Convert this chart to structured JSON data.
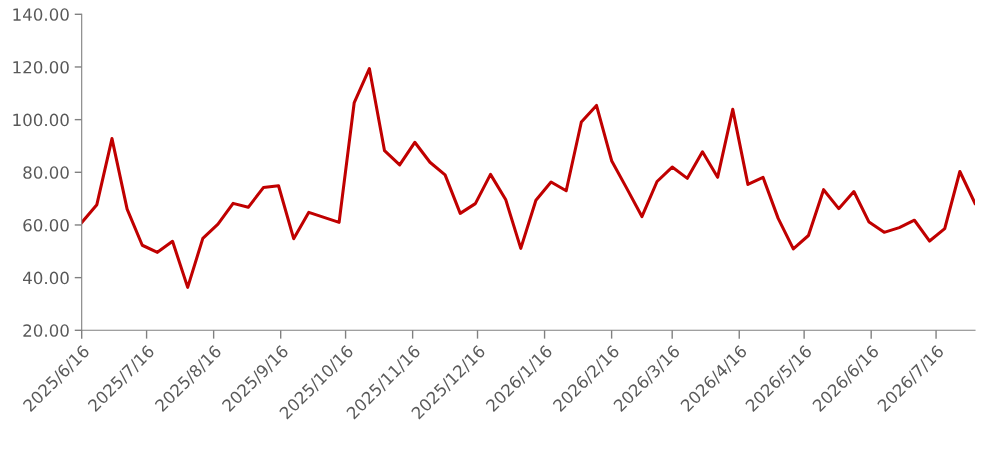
{
  "chart_data": {
    "type": "line",
    "x": [
      "2025-06-16",
      "2025-06-23",
      "2025-06-30",
      "2025-07-07",
      "2025-07-14",
      "2025-07-21",
      "2025-07-28",
      "2025-08-04",
      "2025-08-11",
      "2025-08-18",
      "2025-08-25",
      "2025-09-01",
      "2025-09-08",
      "2025-09-15",
      "2025-09-22",
      "2025-09-29",
      "2025-10-06",
      "2025-10-13",
      "2025-10-20",
      "2025-10-27",
      "2025-11-03",
      "2025-11-10",
      "2025-11-17",
      "2025-11-24",
      "2025-12-01",
      "2025-12-08",
      "2025-12-15",
      "2025-12-22",
      "2025-12-29",
      "2026-01-05",
      "2026-01-12",
      "2026-01-19",
      "2026-01-26",
      "2026-02-02",
      "2026-02-09",
      "2026-02-16",
      "2026-02-23",
      "2026-03-02",
      "2026-03-09",
      "2026-03-16",
      "2026-03-23",
      "2026-03-30",
      "2026-04-06",
      "2026-04-13",
      "2026-04-20",
      "2026-04-27",
      "2026-05-04",
      "2026-05-11",
      "2026-05-18",
      "2026-05-25",
      "2026-06-01",
      "2026-06-08",
      "2026-06-15",
      "2026-06-22",
      "2026-06-29",
      "2026-07-06",
      "2026-07-13",
      "2026-07-20",
      "2026-07-27",
      "2026-08-03"
    ],
    "series": [
      {
        "color": "#c00000",
        "values": [
          60.9,
          67.7,
          92.8,
          66,
          52.3,
          49.6,
          53.8,
          36.3,
          54.9,
          60.3,
          68.2,
          66.7,
          74.2,
          74.9,
          54.8,
          64.8,
          62.9,
          61,
          106.5,
          119.4,
          88.2,
          82.8,
          91.4,
          83.8,
          79,
          64.4,
          68.1,
          79.2,
          69.7,
          51.1,
          69.4,
          76.3,
          73,
          99.1,
          105.4,
          84.4,
          73.9,
          63.2,
          76.5,
          82,
          77.7,
          87.8,
          78.1,
          103.9,
          75.4,
          78.1,
          62.5,
          50.9,
          56,
          73.4,
          66.2,
          72.7,
          61.1,
          57.2,
          59,
          61.8,
          53.9,
          58.6,
          80.3,
          68.2
        ]
      }
    ],
    "xlim": [
      "2025-06-16",
      "2026-08-03"
    ],
    "xticks": [
      {
        "value": "2025-06-16",
        "label": "2025/6/16"
      },
      {
        "value": "2025-07-16",
        "label": "2025/7/16"
      },
      {
        "value": "2025-08-16",
        "label": "2025/8/16"
      },
      {
        "value": "2025-09-16",
        "label": "2025/9/16"
      },
      {
        "value": "2025-10-16",
        "label": "2025/10/16"
      },
      {
        "value": "2025-11-16",
        "label": "2025/11/16"
      },
      {
        "value": "2025-12-16",
        "label": "2025/12/16"
      },
      {
        "value": "2026-01-16",
        "label": "2026/1/16"
      },
      {
        "value": "2026-02-16",
        "label": "2026/2/16"
      },
      {
        "value": "2026-03-16",
        "label": "2026/3/16"
      },
      {
        "value": "2026-04-16",
        "label": "2026/4/16"
      },
      {
        "value": "2026-05-16",
        "label": "2026/5/16"
      },
      {
        "value": "2026-06-16",
        "label": "2026/6/16"
      },
      {
        "value": "2026-07-16",
        "label": "2026/7/16"
      }
    ],
    "ylim": [
      20,
      140
    ],
    "yticks": [
      {
        "value": 20,
        "label": "20.00"
      },
      {
        "value": 40,
        "label": "40.00"
      },
      {
        "value": 60,
        "label": "60.00"
      },
      {
        "value": 80,
        "label": "80.00"
      },
      {
        "value": 100,
        "label": "100.00"
      },
      {
        "value": 120,
        "label": "120.00"
      },
      {
        "value": 140,
        "label": "140.00"
      }
    ],
    "grid": false,
    "marker": "none",
    "line_style": "solid"
  }
}
